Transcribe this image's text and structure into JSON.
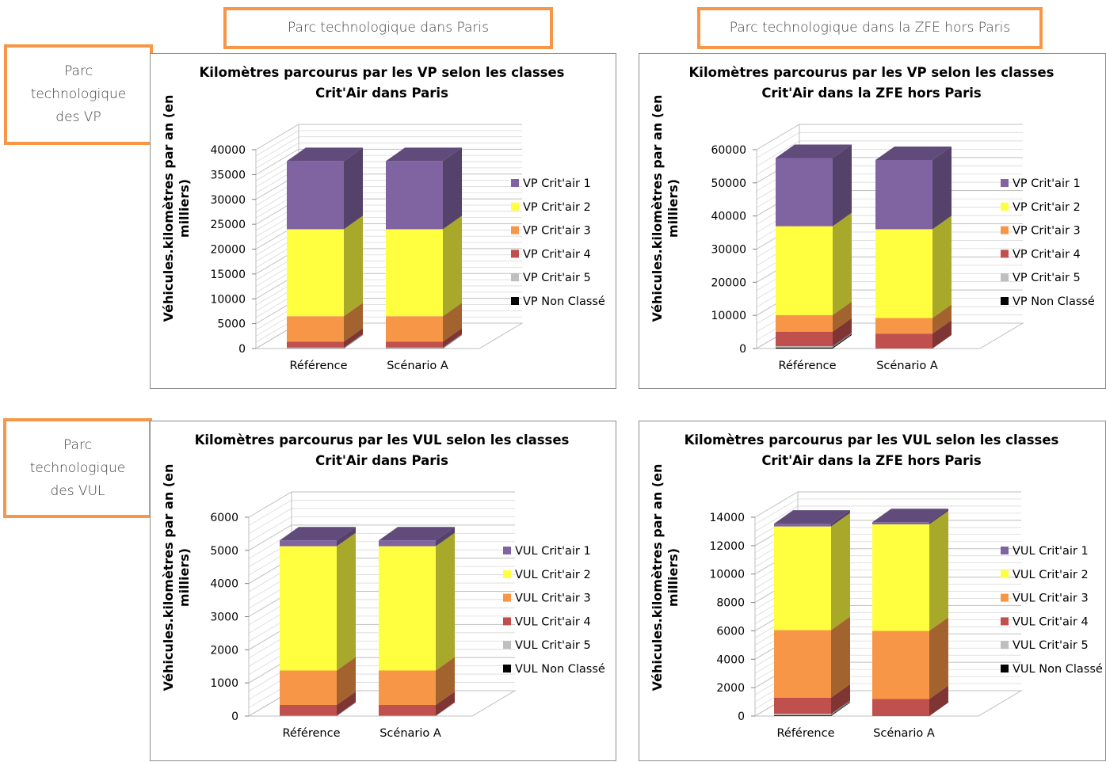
{
  "headers": {
    "paris": "Parc technologique dans Paris",
    "zfe": "Parc technologique dans la ZFE hors Paris",
    "vp_lines": [
      "Parc",
      "technologique",
      "des VP"
    ],
    "vul_lines": [
      "Parc",
      "technologique",
      "des VUL"
    ]
  },
  "colors": {
    "critair1": "#8064a2",
    "critair2": "#ffff40",
    "critair3": "#f79646",
    "critair4": "#c0504d",
    "critair5": "#bfbfbf",
    "non_classe": "#000000"
  },
  "chart_data": [
    {
      "type": "bar",
      "stacked": true,
      "title": [
        "Kilomètres parcourus par les VP selon les classes",
        "Crit'Air dans Paris"
      ],
      "ylabel": [
        "Véhicules.kilomètres par an (en",
        "milliers)"
      ],
      "categories": [
        "Référence",
        "Scénario A"
      ],
      "ylim": [
        0,
        40000
      ],
      "yticks": [
        "0",
        "5000",
        "10000",
        "15000",
        "20000",
        "25000",
        "30000",
        "35000",
        "40000"
      ],
      "legend_position": "right",
      "series": [
        {
          "name": "VP Non Classé",
          "color": "non_classe",
          "values": [
            50,
            50
          ]
        },
        {
          "name": "VP Crit'air 5",
          "color": "critair5",
          "values": [
            150,
            150
          ]
        },
        {
          "name": "VP Crit'air 4",
          "color": "critair4",
          "values": [
            1200,
            1200
          ]
        },
        {
          "name": "VP Crit'air 3",
          "color": "critair3",
          "values": [
            5100,
            5100
          ]
        },
        {
          "name": "VP Crit'air 2",
          "color": "critair2",
          "values": [
            17500,
            17500
          ]
        },
        {
          "name": "VP Crit'air 1",
          "color": "critair1",
          "values": [
            13700,
            13700
          ]
        }
      ]
    },
    {
      "type": "bar",
      "stacked": true,
      "title": [
        "Kilomètres parcourus par les VP selon les classes",
        "Crit'Air dans la ZFE hors Paris"
      ],
      "ylabel": [
        "Véhicules.kilomètres par an (en",
        "milliers)"
      ],
      "categories": [
        "Référence",
        "Scénario A"
      ],
      "ylim": [
        0,
        60000
      ],
      "yticks": [
        "0",
        "10000",
        "20000",
        "30000",
        "40000",
        "50000",
        "60000"
      ],
      "legend_position": "right",
      "series": [
        {
          "name": "VP Non Classé",
          "color": "non_classe",
          "values": [
            300,
            0
          ]
        },
        {
          "name": "VP Crit'air 5",
          "color": "critair5",
          "values": [
            400,
            0
          ]
        },
        {
          "name": "VP Crit'air 4",
          "color": "critair4",
          "values": [
            4400,
            4500
          ]
        },
        {
          "name": "VP Crit'air 3",
          "color": "critair3",
          "values": [
            5000,
            4700
          ]
        },
        {
          "name": "VP Crit'air 2",
          "color": "critair2",
          "values": [
            26800,
            26800
          ]
        },
        {
          "name": "VP Crit'air 1",
          "color": "critair1",
          "values": [
            20600,
            20900
          ]
        }
      ]
    },
    {
      "type": "bar",
      "stacked": true,
      "title": [
        "Kilomètres parcourus par les VUL selon les classes",
        "Crit'Air dans Paris"
      ],
      "ylabel": [
        "Véhicules.kilomètres par an (en",
        "milliers)"
      ],
      "categories": [
        "Référence",
        "Scénario A"
      ],
      "ylim": [
        0,
        6000
      ],
      "yticks": [
        "0",
        "1000",
        "2000",
        "3000",
        "4000",
        "5000",
        "6000"
      ],
      "legend_position": "right",
      "series": [
        {
          "name": "VUL Non Classé",
          "color": "non_classe",
          "values": [
            5,
            5
          ]
        },
        {
          "name": "VUL Crit'air 5",
          "color": "critair5",
          "values": [
            10,
            10
          ]
        },
        {
          "name": "VUL Crit'air 4",
          "color": "critair4",
          "values": [
            320,
            320
          ]
        },
        {
          "name": "VUL Crit'air 3",
          "color": "critair3",
          "values": [
            1040,
            1040
          ]
        },
        {
          "name": "VUL Crit'air 2",
          "color": "critair2",
          "values": [
            3750,
            3750
          ]
        },
        {
          "name": "VUL Crit'air 1",
          "color": "critair1",
          "values": [
            175,
            175
          ]
        }
      ]
    },
    {
      "type": "bar",
      "stacked": true,
      "title": [
        "Kilomètres parcourus par les VUL selon les classes",
        "Crit'Air dans la ZFE hors Paris"
      ],
      "ylabel": [
        "Véhicules.kilomètres par an (en",
        "milliers)"
      ],
      "categories": [
        "Référence",
        "Scénario A"
      ],
      "ylim": [
        0,
        14000
      ],
      "yticks": [
        "0",
        "2000",
        "4000",
        "6000",
        "8000",
        "10000",
        "12000",
        "14000"
      ],
      "legend_position": "right",
      "series": [
        {
          "name": "VUL Non Classé",
          "color": "non_classe",
          "values": [
            50,
            0
          ]
        },
        {
          "name": "VUL Crit'air 5",
          "color": "critair5",
          "values": [
            100,
            0
          ]
        },
        {
          "name": "VUL Crit'air 4",
          "color": "critair4",
          "values": [
            1150,
            1200
          ]
        },
        {
          "name": "VUL Crit'air 3",
          "color": "critair3",
          "values": [
            4750,
            4800
          ]
        },
        {
          "name": "VUL Crit'air 2",
          "color": "critair2",
          "values": [
            7300,
            7500
          ]
        },
        {
          "name": "VUL Crit'air 1",
          "color": "critair1",
          "values": [
            200,
            150
          ]
        }
      ]
    }
  ]
}
